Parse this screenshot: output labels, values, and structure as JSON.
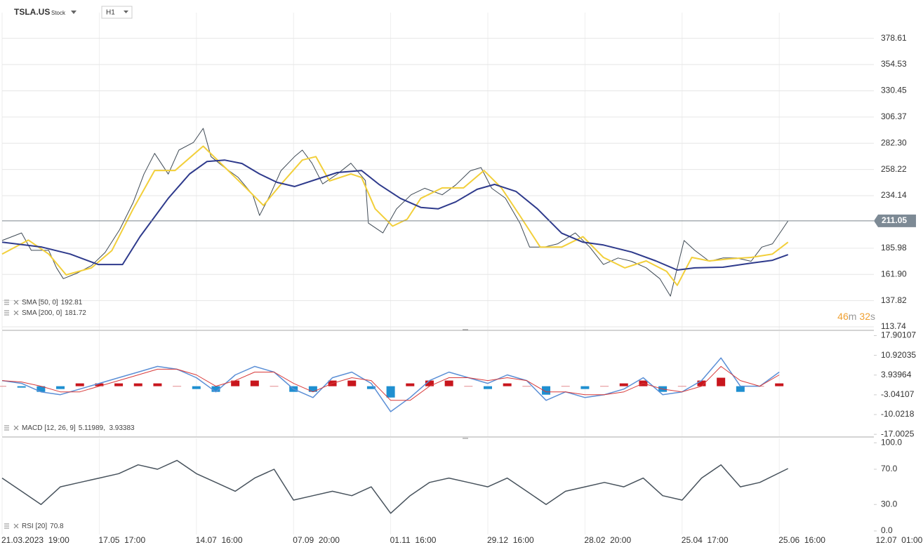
{
  "header": {
    "symbol": "TSLA.US",
    "kind": "Stock",
    "interval": "H1",
    "timer": [
      "46",
      "m",
      "32",
      "s"
    ]
  },
  "chart_data": [
    {
      "type": "line",
      "grid": true,
      "current_price": 211.05,
      "xlim": [
        0,
        9
      ],
      "ylim": [
        111.2,
        402.2
      ],
      "xticks": [
        {
          "value": 0,
          "label": "21.03.2023  19:00"
        },
        {
          "value": 1,
          "label": "17.05  17:00"
        },
        {
          "value": 2,
          "label": "14.07  16:00"
        },
        {
          "value": 3,
          "label": "07.09  20:00"
        },
        {
          "value": 4,
          "label": "01.11  16:00"
        },
        {
          "value": 5,
          "label": "29.12  16:00"
        },
        {
          "value": 6,
          "label": "28.02  20:00"
        },
        {
          "value": 7,
          "label": "25.04  17:00"
        },
        {
          "value": 8,
          "label": "25.06  16:00"
        },
        {
          "value": 9,
          "label": "12.07  01:00"
        }
      ],
      "yticks": [
        378.61,
        354.53,
        330.45,
        306.37,
        {
          "value": 282.3,
          "label": "282.30"
        },
        258.22,
        234.14,
        185.98,
        {
          "value": 161.9,
          "label": "161.90"
        },
        137.82,
        113.74
      ],
      "series": [
        {
          "name": "TSLA.US",
          "color": "#3f4a55",
          "width": 1,
          "x": [
            0,
            0.2,
            0.3,
            0.48,
            0.56,
            0.63,
            0.77,
            0.92,
            1.06,
            1.21,
            1.35,
            1.46,
            1.57,
            1.71,
            1.82,
            1.97,
            2.07,
            2.15,
            2.29,
            2.43,
            2.58,
            2.65,
            2.76,
            2.87,
            3.01,
            3.09,
            3.19,
            3.3,
            3.45,
            3.59,
            3.74,
            3.77,
            3.92,
            4.06,
            4.21,
            4.35,
            4.53,
            4.67,
            4.82,
            4.93,
            5.04,
            5.18,
            5.33,
            5.43,
            5.58,
            5.72,
            5.9,
            6.05,
            6.19,
            6.34,
            6.48,
            6.63,
            6.77,
            6.88,
            6.95,
            7.02,
            7.13,
            7.28,
            7.42,
            7.56,
            7.71,
            7.82,
            7.93,
            8.03,
            8.09
          ],
          "values": [
            193,
            200,
            184,
            184,
            168,
            158,
            163,
            170,
            182,
            203,
            228,
            254,
            273,
            254,
            276,
            283,
            296,
            270,
            260,
            251,
            235,
            216,
            235,
            257,
            270,
            276,
            264,
            245,
            254,
            264,
            248,
            209,
            200,
            222,
            235,
            241,
            235,
            244,
            257,
            260,
            241,
            232,
            209,
            187,
            187,
            190,
            200,
            187,
            171,
            177,
            174,
            168,
            158,
            142,
            168,
            193,
            184,
            174,
            177,
            177,
            174,
            187,
            190,
            203,
            211
          ]
        },
        {
          "name": "SMA [50, 0]",
          "legend_value": "192.81",
          "color": "#f2cf3a",
          "width": 2,
          "x": [
            0,
            0.27,
            0.48,
            0.66,
            0.92,
            1.13,
            1.35,
            1.57,
            1.78,
            2.07,
            2.29,
            2.51,
            2.69,
            2.87,
            3.09,
            3.23,
            3.37,
            3.59,
            3.7,
            3.84,
            4.02,
            4.17,
            4.31,
            4.53,
            4.75,
            4.96,
            5.14,
            5.33,
            5.54,
            5.76,
            5.98,
            6.19,
            6.41,
            6.63,
            6.84,
            6.95,
            7.1,
            7.28,
            7.49,
            7.71,
            7.93,
            8.09
          ],
          "values": [
            180.6,
            193.4,
            180.6,
            161.5,
            167.9,
            183.8,
            222.1,
            257.3,
            257.3,
            279.6,
            260.5,
            241.3,
            225.3,
            244.5,
            266.9,
            270,
            247.7,
            254.1,
            250.9,
            222.1,
            206.2,
            212.6,
            231.7,
            241.3,
            241.3,
            257.3,
            241.3,
            215.8,
            187,
            187,
            196.6,
            177.5,
            167.9,
            174.3,
            164.7,
            151.9,
            177.5,
            174.3,
            176.2,
            177.5,
            180.6,
            191.5
          ]
        },
        {
          "name": "SMA [200, 0]",
          "legend_value": "181.72",
          "color": "#2e3a8c",
          "width": 2,
          "x": [
            0,
            0.41,
            0.7,
            0.99,
            1.24,
            1.42,
            1.71,
            1.93,
            2.11,
            2.29,
            2.47,
            2.65,
            2.83,
            3.01,
            3.23,
            3.45,
            3.7,
            3.88,
            4.1,
            4.31,
            4.49,
            4.67,
            4.89,
            5.07,
            5.29,
            5.51,
            5.76,
            5.98,
            6.19,
            6.48,
            6.73,
            6.95,
            7.13,
            7.42,
            7.71,
            7.93,
            8.09
          ],
          "values": [
            191.5,
            187,
            180.6,
            171,
            171,
            196.6,
            231.7,
            254.1,
            265.6,
            266.9,
            263.7,
            254.1,
            246.4,
            242.6,
            249,
            255.4,
            257.3,
            244.5,
            231.7,
            223.4,
            222.1,
            228.5,
            240,
            244.5,
            238.1,
            222.1,
            199.8,
            191.5,
            188.9,
            182.5,
            174.3,
            165.9,
            167.9,
            168.5,
            172.3,
            174.9,
            180
          ]
        }
      ]
    },
    {
      "type": "combo",
      "grid": false,
      "xlim": [
        0,
        9
      ],
      "ylim": [
        -17.7,
        19.5
      ],
      "yticks": [
        17.90107,
        10.92035,
        3.93964,
        -3.04107,
        -10.0218,
        -17.0025
      ],
      "series": [
        {
          "name": "Histogram",
          "kind": "bar",
          "positive_color": "#c8161d",
          "negative_color": "#1f8fd0",
          "x": [
            0,
            0.2,
            0.4,
            0.6,
            0.8,
            1,
            1.2,
            1.4,
            1.6,
            1.8,
            2,
            2.2,
            2.4,
            2.6,
            2.8,
            3,
            3.2,
            3.4,
            3.6,
            3.8,
            4,
            4.2,
            4.4,
            4.6,
            4.8,
            5,
            5.2,
            5.4,
            5.6,
            5.8,
            6,
            6.2,
            6.4,
            6.6,
            6.8,
            7,
            7.2,
            7.4,
            7.6,
            7.8,
            8
          ],
          "values": [
            0,
            -0.5,
            -2,
            -1,
            1,
            1,
            1,
            1,
            1,
            0,
            -1,
            -2,
            2,
            2,
            0,
            -2,
            -2,
            2,
            2,
            -1,
            -4,
            1,
            2,
            2,
            0,
            -1,
            1,
            0,
            -3,
            0,
            -1,
            0,
            1,
            2,
            -2,
            0,
            2,
            3,
            -2,
            0,
            1
          ]
        },
        {
          "name": "MACD [12, 26, 9]",
          "legend_value": "5.11989,  3.93383",
          "kind": "line",
          "color": "#5b8fd6",
          "width": 1.5,
          "x": [
            0,
            0.2,
            0.4,
            0.6,
            0.8,
            1,
            1.2,
            1.4,
            1.6,
            1.8,
            2,
            2.2,
            2.4,
            2.6,
            2.8,
            3,
            3.2,
            3.4,
            3.6,
            3.8,
            4,
            4.2,
            4.4,
            4.6,
            4.8,
            5,
            5.2,
            5.4,
            5.6,
            5.8,
            6,
            6.2,
            6.4,
            6.6,
            6.8,
            7,
            7.2,
            7.4,
            7.6,
            7.8,
            8
          ],
          "values": [
            2,
            1,
            -2,
            -3,
            -1,
            1,
            3,
            5,
            7,
            6,
            3,
            -2,
            4,
            7,
            5,
            -1,
            -4,
            3,
            5,
            1,
            -9,
            -4,
            2,
            5,
            3,
            1,
            4,
            2,
            -5,
            -2,
            -4,
            -3,
            -1,
            3,
            -3,
            -2,
            2,
            10,
            0,
            0,
            5
          ]
        },
        {
          "name": "Signal",
          "kind": "line",
          "color": "#d83a3a",
          "width": 1,
          "x": [
            0,
            0.2,
            0.4,
            0.6,
            0.8,
            1,
            1.2,
            1.4,
            1.6,
            1.8,
            2,
            2.2,
            2.4,
            2.6,
            2.8,
            3,
            3.2,
            3.4,
            3.6,
            3.8,
            4,
            4.2,
            4.4,
            4.6,
            4.8,
            5,
            5.2,
            5.4,
            5.6,
            5.8,
            6,
            6.2,
            6.4,
            6.6,
            6.8,
            7,
            7.2,
            7.4,
            7.6,
            7.8,
            8
          ],
          "values": [
            2,
            1.5,
            0,
            -2,
            -2,
            0,
            2,
            4,
            6,
            6,
            4,
            0,
            2,
            5,
            5,
            1,
            -2,
            1,
            3,
            2,
            -5,
            -5,
            0,
            3,
            3,
            2,
            3,
            2,
            -2,
            -2,
            -3,
            -3,
            -2,
            1,
            -1,
            -2,
            0,
            7,
            2,
            0,
            4
          ]
        }
      ]
    },
    {
      "type": "line",
      "grid": false,
      "xlim": [
        0,
        9
      ],
      "ylim": [
        -4,
        105
      ],
      "yticks": [
        {
          "value": 100,
          "label": "100.0"
        },
        {
          "value": 70,
          "label": "70.0"
        },
        {
          "value": 30,
          "label": "30.0"
        },
        {
          "value": 0,
          "label": "0.0"
        }
      ],
      "series": [
        {
          "name": "RSI [20]",
          "legend_value": "70.8",
          "color": "#47525c",
          "width": 1.5,
          "x": [
            0,
            0.2,
            0.4,
            0.6,
            0.8,
            1,
            1.2,
            1.4,
            1.6,
            1.8,
            2,
            2.2,
            2.4,
            2.6,
            2.8,
            3,
            3.2,
            3.4,
            3.6,
            3.8,
            4,
            4.2,
            4.4,
            4.6,
            4.8,
            5,
            5.2,
            5.4,
            5.6,
            5.8,
            6,
            6.2,
            6.4,
            6.6,
            6.8,
            7,
            7.2,
            7.4,
            7.6,
            7.8,
            8.09
          ],
          "values": [
            60,
            45,
            30,
            50,
            55,
            60,
            65,
            75,
            70,
            80,
            65,
            55,
            45,
            60,
            70,
            35,
            40,
            45,
            40,
            50,
            20,
            40,
            55,
            60,
            55,
            50,
            60,
            45,
            30,
            45,
            50,
            55,
            50,
            60,
            40,
            35,
            60,
            75,
            50,
            55,
            70.8
          ]
        }
      ]
    }
  ]
}
